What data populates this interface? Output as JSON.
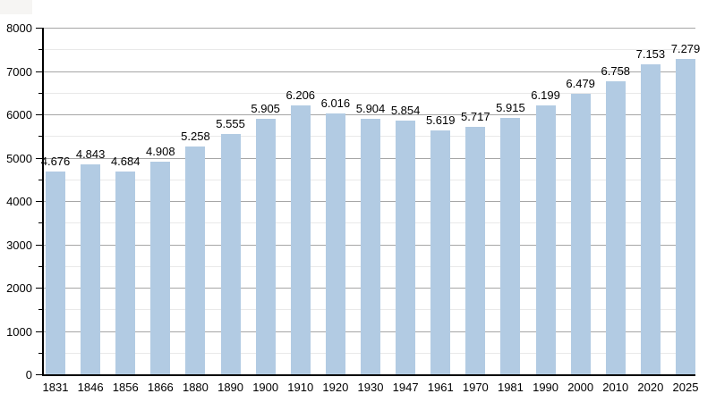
{
  "chart_data": {
    "type": "bar",
    "title": "",
    "xlabel": "",
    "ylabel": "",
    "categories": [
      "1831",
      "1846",
      "1856",
      "1866",
      "1880",
      "1890",
      "1900",
      "1910",
      "1920",
      "1930",
      "1947",
      "1961",
      "1970",
      "1981",
      "1990",
      "2000",
      "2010",
      "2020",
      "2025"
    ],
    "values": [
      4676,
      4843,
      4684,
      4908,
      5258,
      5555,
      5905,
      6206,
      6016,
      5904,
      5854,
      5619,
      5717,
      5915,
      6199,
      6479,
      6758,
      7153,
      7279
    ],
    "value_labels": [
      "4.676",
      "4.843",
      "4.684",
      "4.908",
      "5.258",
      "5.555",
      "5.905",
      "6.206",
      "6.016",
      "5.904",
      "5.854",
      "5.619",
      "5.717",
      "5.915",
      "6.199",
      "6.479",
      "6.758",
      "7.153",
      "7.279"
    ],
    "y_tick_labels": [
      "0",
      "1000",
      "2000",
      "3000",
      "4000",
      "5000",
      "6000",
      "7000",
      "8000"
    ],
    "ylim": [
      0,
      8000
    ],
    "y_major_step": 1000,
    "y_minor_step": 500,
    "grid": true,
    "legend_position": "none",
    "colors": {
      "bar_fill": "#b2cbe3",
      "grid_major": "#a6a6a6",
      "grid_minor": "#e9e9e9",
      "axis": "#000000",
      "text": "#000000",
      "background": "#ffffff"
    }
  }
}
